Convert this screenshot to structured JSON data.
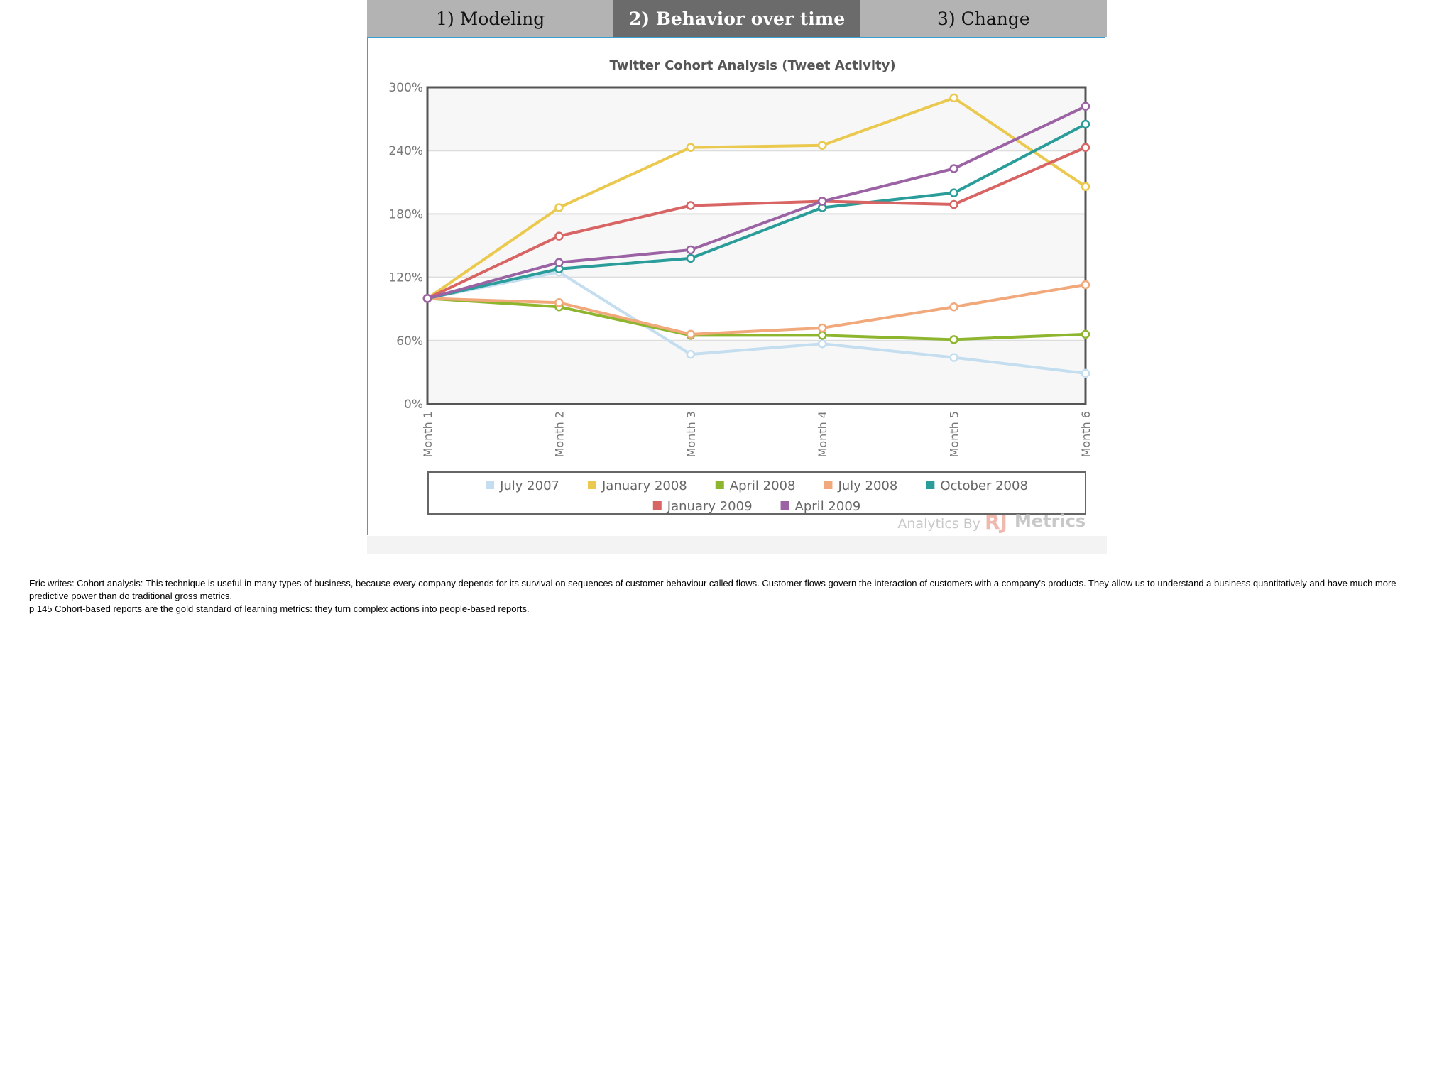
{
  "tabs": [
    {
      "label": "1) Modeling",
      "active": false
    },
    {
      "label": "2) Behavior over time",
      "active": true
    },
    {
      "label": "3) Change",
      "active": false
    }
  ],
  "chart_data": {
    "type": "line",
    "title": "Twitter Cohort Analysis (Tweet Activity)",
    "categories": [
      "Month 1",
      "Month 2",
      "Month 3",
      "Month 4",
      "Month 5",
      "Month 6"
    ],
    "ylim": [
      0,
      300
    ],
    "yticks": [
      0,
      60,
      120,
      180,
      240,
      300
    ],
    "ytick_labels": [
      "0%",
      "60%",
      "120%",
      "180%",
      "240%",
      "300%"
    ],
    "grid": "horizontal bands",
    "legend": "bottom",
    "series": [
      {
        "name": "July 2007",
        "color": "#c4def0",
        "values": [
          100,
          125,
          47,
          57,
          44,
          29
        ]
      },
      {
        "name": "January 2008",
        "color": "#eac94e",
        "values": [
          100,
          186,
          243,
          245,
          290,
          206
        ]
      },
      {
        "name": "April 2008",
        "color": "#8db52d",
        "values": [
          100,
          92,
          65,
          65,
          61,
          66
        ]
      },
      {
        "name": "July 2008",
        "color": "#f1a87a",
        "values": [
          100,
          96,
          66,
          72,
          92,
          113
        ]
      },
      {
        "name": "October 2008",
        "color": "#2a9d9a",
        "values": [
          100,
          128,
          138,
          186,
          200,
          265
        ]
      },
      {
        "name": "January 2009",
        "color": "#d86464",
        "values": [
          100,
          159,
          188,
          192,
          189,
          243
        ]
      },
      {
        "name": "April 2009",
        "color": "#9b62a4",
        "values": [
          100,
          134,
          146,
          192,
          223,
          282
        ]
      }
    ],
    "watermark": {
      "prefix": "Analytics By",
      "logo_mark": "RJ",
      "logo_word": "Metrics"
    }
  },
  "notes": [
    "Eric writes: Cohort analysis: This technique is useful in many types of business, because every company depends for its survival on sequences of customer behaviour called flows. Customer flows govern the interaction of customers with a company's products. They allow us to understand a business quantitatively and have much more predictive power than do traditional gross metrics.",
    "p 145 Cohort-based reports are the gold standard of learning metrics: they turn complex actions into people-based reports."
  ]
}
